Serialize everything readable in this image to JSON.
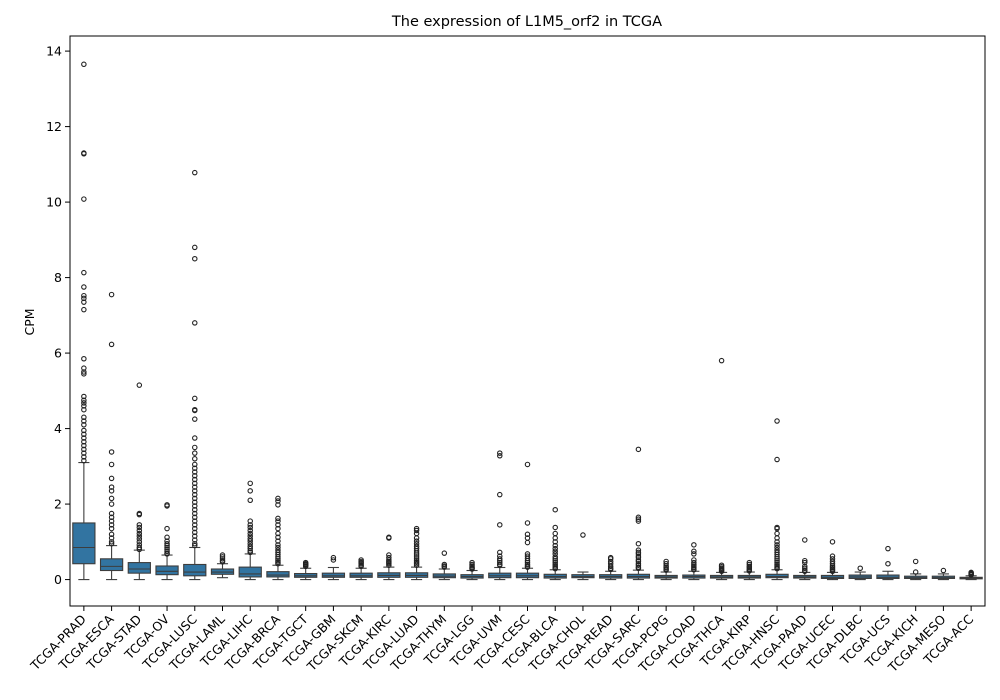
{
  "chart_data": {
    "type": "box",
    "title": "The expression of L1M5_orf2 in TCGA",
    "xlabel": "",
    "ylabel": "CPM",
    "ylim": [
      -0.7,
      14.4
    ],
    "yticks": [
      0,
      2,
      4,
      6,
      8,
      10,
      12,
      14
    ],
    "grid": false,
    "box_color": "#3274a1",
    "categories": [
      "TCGA-PRAD",
      "TCGA-ESCA",
      "TCGA-STAD",
      "TCGA-OV",
      "TCGA-LUSC",
      "TCGA-LAML",
      "TCGA-LIHC",
      "TCGA-BRCA",
      "TCGA-TGCT",
      "TCGA-GBM",
      "TCGA-SKCM",
      "TCGA-KIRC",
      "TCGA-LUAD",
      "TCGA-THYM",
      "TCGA-LGG",
      "TCGA-UVM",
      "TCGA-CESC",
      "TCGA-BLCA",
      "TCGA-CHOL",
      "TCGA-READ",
      "TCGA-SARC",
      "TCGA-PCPG",
      "TCGA-COAD",
      "TCGA-THCA",
      "TCGA-KIRP",
      "TCGA-HNSC",
      "TCGA-PAAD",
      "TCGA-UCEC",
      "TCGA-DLBC",
      "TCGA-UCS",
      "TCGA-KICH",
      "TCGA-MESO",
      "TCGA-ACC"
    ],
    "boxes": [
      {
        "min": 0.0,
        "q1": 0.42,
        "median": 0.85,
        "q3": 1.5,
        "max": 3.1,
        "outliers": [
          13.65,
          11.3,
          11.28,
          10.08,
          8.13,
          7.75,
          7.52,
          7.45,
          7.35,
          7.15,
          5.85,
          5.6,
          5.5,
          5.45,
          4.85,
          4.75,
          4.68,
          4.6,
          4.5,
          4.3,
          4.2,
          4.1,
          3.95,
          3.85,
          3.75,
          3.65,
          3.55,
          3.45,
          3.35,
          3.25,
          3.15
        ]
      },
      {
        "min": 0.0,
        "q1": 0.24,
        "median": 0.35,
        "q3": 0.55,
        "max": 0.9,
        "outliers": [
          7.55,
          6.23,
          3.38,
          3.05,
          2.68,
          2.45,
          2.35,
          2.15,
          2.0,
          1.75,
          1.65,
          1.55,
          1.45,
          1.35,
          1.2,
          1.1,
          1.0,
          0.95
        ]
      },
      {
        "min": 0.0,
        "q1": 0.17,
        "median": 0.28,
        "q3": 0.45,
        "max": 0.78,
        "outliers": [
          5.15,
          1.75,
          1.72,
          1.45,
          1.38,
          1.3,
          1.22,
          1.15,
          1.08,
          1.0,
          0.92,
          0.85,
          0.8
        ]
      },
      {
        "min": 0.0,
        "q1": 0.13,
        "median": 0.22,
        "q3": 0.36,
        "max": 0.65,
        "outliers": [
          1.98,
          1.95,
          1.35,
          1.12,
          1.02,
          0.95,
          0.9,
          0.85,
          0.8,
          0.75,
          0.7,
          0.68
        ]
      },
      {
        "min": 0.0,
        "q1": 0.1,
        "median": 0.2,
        "q3": 0.4,
        "max": 0.85,
        "outliers": [
          10.78,
          8.8,
          8.5,
          6.8,
          4.8,
          4.5,
          4.48,
          4.25,
          3.75,
          3.5,
          3.35,
          3.2,
          3.05,
          2.95,
          2.85,
          2.75,
          2.65,
          2.55,
          2.45,
          2.35,
          2.25,
          2.15,
          2.05,
          1.95,
          1.85,
          1.75,
          1.65,
          1.55,
          1.45,
          1.35,
          1.25,
          1.15,
          1.05,
          0.95,
          0.9
        ]
      },
      {
        "min": 0.05,
        "q1": 0.14,
        "median": 0.2,
        "q3": 0.28,
        "max": 0.42,
        "outliers": [
          0.65,
          0.6,
          0.55,
          0.5,
          0.47
        ]
      },
      {
        "min": 0.0,
        "q1": 0.07,
        "median": 0.15,
        "q3": 0.33,
        "max": 0.68,
        "outliers": [
          2.55,
          2.35,
          2.1,
          1.55,
          1.45,
          1.38,
          1.3,
          1.22,
          1.15,
          1.08,
          1.02,
          0.95,
          0.88,
          0.82,
          0.76,
          0.72
        ]
      },
      {
        "min": 0.0,
        "q1": 0.07,
        "median": 0.12,
        "q3": 0.21,
        "max": 0.38,
        "outliers": [
          2.15,
          2.08,
          1.98,
          1.62,
          1.55,
          1.45,
          1.35,
          1.22,
          1.12,
          1.02,
          0.92,
          0.85,
          0.78,
          0.72,
          0.66,
          0.6,
          0.55,
          0.5,
          0.46,
          0.42
        ]
      },
      {
        "min": 0.0,
        "q1": 0.06,
        "median": 0.1,
        "q3": 0.16,
        "max": 0.3,
        "outliers": [
          0.45,
          0.42,
          0.4,
          0.38,
          0.35
        ]
      },
      {
        "min": 0.0,
        "q1": 0.06,
        "median": 0.1,
        "q3": 0.17,
        "max": 0.32,
        "outliers": [
          0.58,
          0.52
        ]
      },
      {
        "min": 0.0,
        "q1": 0.06,
        "median": 0.1,
        "q3": 0.17,
        "max": 0.3,
        "outliers": [
          0.52,
          0.48,
          0.45,
          0.42,
          0.38,
          0.35
        ]
      },
      {
        "min": 0.0,
        "q1": 0.06,
        "median": 0.11,
        "q3": 0.18,
        "max": 0.33,
        "outliers": [
          1.12,
          1.1,
          0.65,
          0.58,
          0.52,
          0.48,
          0.45,
          0.42,
          0.38
        ]
      },
      {
        "min": 0.0,
        "q1": 0.06,
        "median": 0.11,
        "q3": 0.18,
        "max": 0.33,
        "outliers": [
          1.35,
          1.3,
          1.22,
          1.1,
          1.02,
          0.95,
          0.88,
          0.82,
          0.76,
          0.7,
          0.65,
          0.6,
          0.55,
          0.5,
          0.46,
          0.42,
          0.38
        ]
      },
      {
        "min": 0.0,
        "q1": 0.05,
        "median": 0.09,
        "q3": 0.15,
        "max": 0.28,
        "outliers": [
          0.7,
          0.4,
          0.36,
          0.33
        ]
      },
      {
        "min": 0.0,
        "q1": 0.04,
        "median": 0.08,
        "q3": 0.13,
        "max": 0.24,
        "outliers": [
          0.45,
          0.4,
          0.36,
          0.32,
          0.3,
          0.28
        ]
      },
      {
        "min": 0.0,
        "q1": 0.05,
        "median": 0.1,
        "q3": 0.17,
        "max": 0.32,
        "outliers": [
          3.35,
          3.28,
          2.25,
          1.45,
          0.72,
          0.62,
          0.55,
          0.5,
          0.45,
          0.4,
          0.38
        ]
      },
      {
        "min": 0.0,
        "q1": 0.05,
        "median": 0.1,
        "q3": 0.17,
        "max": 0.3,
        "outliers": [
          3.05,
          1.5,
          1.2,
          1.1,
          0.98,
          0.68,
          0.62,
          0.56,
          0.5,
          0.45,
          0.4,
          0.36,
          0.33
        ]
      },
      {
        "min": 0.0,
        "q1": 0.04,
        "median": 0.08,
        "q3": 0.14,
        "max": 0.26,
        "outliers": [
          1.85,
          1.38,
          1.22,
          1.1,
          1.0,
          0.9,
          0.82,
          0.75,
          0.68,
          0.6,
          0.55,
          0.5,
          0.45,
          0.4,
          0.36,
          0.32,
          0.29
        ]
      },
      {
        "min": 0.0,
        "q1": 0.05,
        "median": 0.08,
        "q3": 0.13,
        "max": 0.2,
        "outliers": [
          1.18
        ]
      },
      {
        "min": 0.0,
        "q1": 0.04,
        "median": 0.08,
        "q3": 0.13,
        "max": 0.22,
        "outliers": [
          0.58,
          0.55,
          0.48,
          0.42,
          0.35,
          0.3,
          0.27
        ]
      },
      {
        "min": 0.0,
        "q1": 0.04,
        "median": 0.08,
        "q3": 0.14,
        "max": 0.25,
        "outliers": [
          3.45,
          1.65,
          1.6,
          1.55,
          0.95,
          0.78,
          0.72,
          0.68,
          0.62,
          0.58,
          0.52,
          0.48,
          0.42,
          0.38,
          0.33,
          0.3
        ]
      },
      {
        "min": 0.0,
        "q1": 0.04,
        "median": 0.07,
        "q3": 0.11,
        "max": 0.2,
        "outliers": [
          0.48,
          0.42,
          0.36,
          0.32,
          0.28,
          0.25
        ]
      },
      {
        "min": 0.0,
        "q1": 0.04,
        "median": 0.08,
        "q3": 0.12,
        "max": 0.22,
        "outliers": [
          0.92,
          0.75,
          0.68,
          0.52,
          0.45,
          0.4,
          0.36,
          0.32,
          0.28,
          0.26
        ]
      },
      {
        "min": 0.0,
        "q1": 0.04,
        "median": 0.07,
        "q3": 0.11,
        "max": 0.19,
        "outliers": [
          5.8,
          0.38,
          0.34,
          0.3,
          0.27,
          0.24,
          0.22
        ]
      },
      {
        "min": 0.0,
        "q1": 0.04,
        "median": 0.07,
        "q3": 0.11,
        "max": 0.2,
        "outliers": [
          0.45,
          0.4,
          0.35,
          0.32,
          0.28,
          0.25,
          0.23
        ]
      },
      {
        "min": 0.0,
        "q1": 0.05,
        "median": 0.08,
        "q3": 0.14,
        "max": 0.26,
        "outliers": [
          4.2,
          3.18,
          1.38,
          1.35,
          1.22,
          1.1,
          1.0,
          0.92,
          0.85,
          0.78,
          0.72,
          0.66,
          0.6,
          0.55,
          0.5,
          0.45,
          0.4,
          0.36,
          0.32,
          0.29
        ]
      },
      {
        "min": 0.0,
        "q1": 0.04,
        "median": 0.07,
        "q3": 0.11,
        "max": 0.19,
        "outliers": [
          1.05,
          0.5,
          0.45,
          0.35,
          0.3,
          0.25,
          0.22
        ]
      },
      {
        "min": 0.0,
        "q1": 0.03,
        "median": 0.06,
        "q3": 0.11,
        "max": 0.19,
        "outliers": [
          1.0,
          0.62,
          0.55,
          0.48,
          0.42,
          0.36,
          0.32,
          0.28,
          0.25,
          0.22
        ]
      },
      {
        "min": 0.0,
        "q1": 0.03,
        "median": 0.07,
        "q3": 0.12,
        "max": 0.2,
        "outliers": [
          0.3
        ]
      },
      {
        "min": 0.0,
        "q1": 0.03,
        "median": 0.06,
        "q3": 0.12,
        "max": 0.22,
        "outliers": [
          0.82,
          0.42
        ]
      },
      {
        "min": 0.0,
        "q1": 0.03,
        "median": 0.05,
        "q3": 0.09,
        "max": 0.15,
        "outliers": [
          0.48,
          0.2
        ]
      },
      {
        "min": 0.0,
        "q1": 0.03,
        "median": 0.05,
        "q3": 0.09,
        "max": 0.15,
        "outliers": [
          0.24
        ]
      },
      {
        "min": 0.0,
        "q1": 0.02,
        "median": 0.04,
        "q3": 0.06,
        "max": 0.1,
        "outliers": [
          0.19,
          0.17,
          0.15,
          0.13,
          0.12
        ]
      }
    ]
  }
}
